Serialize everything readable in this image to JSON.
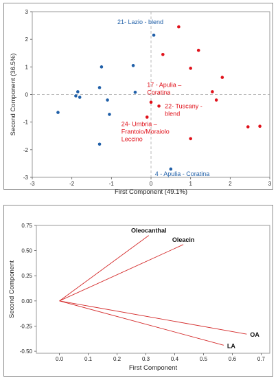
{
  "chart_data": [
    {
      "type": "scatter",
      "xlabel": "First Component (49.1%)",
      "ylabel": "Second Component (36.5%)",
      "xlim": [
        -3,
        3
      ],
      "ylim": [
        -3,
        3
      ],
      "xticks": [
        "-3",
        "-2",
        "-1",
        "0",
        "1",
        "2",
        "3"
      ],
      "yticks": [
        "-3",
        "-2",
        "-1",
        "0",
        "1",
        "2",
        "3"
      ],
      "reference_lines": [
        {
          "axis": "x",
          "value": 0
        },
        {
          "axis": "y",
          "value": 0
        }
      ],
      "grid": false,
      "colors": {
        "blue": "#1f5fa8",
        "red": "#e0121b"
      },
      "series": [
        {
          "color": "blue",
          "points": [
            [
              0.07,
              2.15
            ],
            [
              -1.25,
              1.0
            ],
            [
              -0.45,
              1.05
            ],
            [
              -1.85,
              0.1
            ],
            [
              -1.9,
              -0.05
            ],
            [
              -1.8,
              -0.1
            ],
            [
              -1.3,
              0.25
            ],
            [
              -0.4,
              0.08
            ],
            [
              -1.1,
              -0.2
            ],
            [
              -2.35,
              -0.65
            ],
            [
              -1.05,
              -0.72
            ],
            [
              -1.3,
              -1.8
            ],
            [
              0.5,
              -2.7
            ]
          ]
        },
        {
          "color": "red",
          "points": [
            [
              0.7,
              2.45
            ],
            [
              0.3,
              1.45
            ],
            [
              1.2,
              1.6
            ],
            [
              1.0,
              0.95
            ],
            [
              1.8,
              0.62
            ],
            [
              0.0,
              -0.28
            ],
            [
              1.55,
              0.1
            ],
            [
              1.65,
              -0.2
            ],
            [
              0.2,
              -0.42
            ],
            [
              -0.1,
              -0.82
            ],
            [
              1.0,
              -1.6
            ],
            [
              2.45,
              -1.17
            ],
            [
              2.75,
              -1.15
            ]
          ]
        }
      ],
      "annotations": [
        {
          "text": "21- Lazio - blend",
          "color": "blue",
          "x": -0.85,
          "y": 2.55
        },
        {
          "lines": [
            "17 - Apulia –",
            "Coratina"
          ],
          "color": "red",
          "x": -0.1,
          "y": 0.28
        },
        {
          "lines": [
            "22- Tuscany -",
            "blend"
          ],
          "color": "red",
          "x": 0.35,
          "y": -0.5
        },
        {
          "lines": [
            "24- Umbria –",
            "Frantoio/Moraiolo",
            "Leccino"
          ],
          "color": "red",
          "x": -0.75,
          "y": -1.15
        },
        {
          "text": "4 - Apulia - Coratina",
          "color": "blue",
          "x": 0.1,
          "y": -2.95
        }
      ]
    },
    {
      "type": "vector",
      "xlabel": "First Component",
      "ylabel": "Second Component",
      "xlim": [
        -0.08,
        0.73
      ],
      "ylim": [
        -0.52,
        0.75
      ],
      "xticks": [
        "0.0",
        "0.1",
        "0.2",
        "0.3",
        "0.4",
        "0.5",
        "0.6",
        "0.7"
      ],
      "yticks": [
        "-0.50",
        "-0.25",
        "0.00",
        "0.25",
        "0.50",
        "0.75"
      ],
      "colors": {
        "line": "#d42a2a"
      },
      "vectors": [
        {
          "name": "Oleocanthal",
          "x": 0.31,
          "y": 0.65
        },
        {
          "name": "Oleacin",
          "x": 0.43,
          "y": 0.56
        },
        {
          "name": "OA",
          "x": 0.65,
          "y": -0.33
        },
        {
          "name": "LA",
          "x": 0.57,
          "y": -0.44
        }
      ]
    }
  ]
}
